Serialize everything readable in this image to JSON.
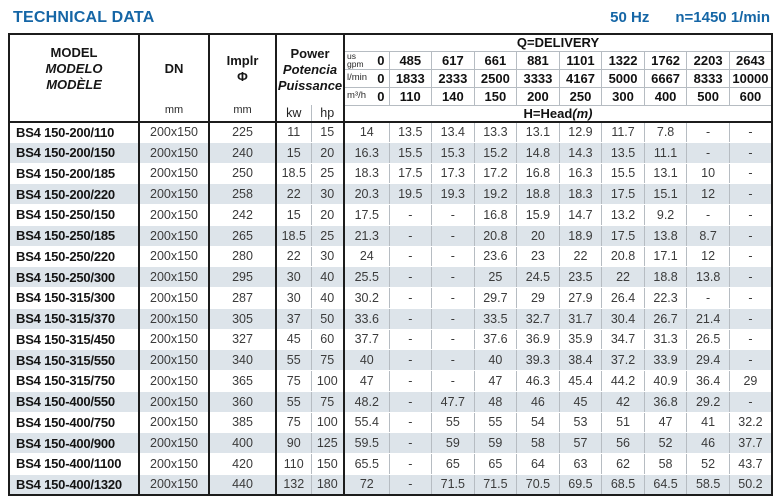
{
  "header": {
    "title": "TECHNICAL DATA",
    "frequency": "50 Hz",
    "speed": "n=1450 1/min"
  },
  "table": {
    "model_header": {
      "en": "MODEL",
      "es": "MODELO",
      "fr": "MODÈLE"
    },
    "dn_header": {
      "label": "DN",
      "unit": "mm"
    },
    "impeller_header": {
      "label": "Implr",
      "symbol": "Φ",
      "unit": "mm"
    },
    "power_header": {
      "en": "Power",
      "es": "Potencia",
      "fr": "Puissance",
      "unit_kw": "kw",
      "unit_hp": "hp"
    },
    "delivery": {
      "title": "Q=DELIVERY",
      "head_label": "H=Head",
      "head_unit": "(m)",
      "unit_rows": [
        {
          "unit_lines": [
            "us",
            "gpm"
          ],
          "zero": "0",
          "values": [
            "485",
            "617",
            "661",
            "881",
            "1101",
            "1322",
            "1762",
            "2203",
            "2643"
          ]
        },
        {
          "unit_lines": [
            "l/min"
          ],
          "zero": "0",
          "values": [
            "1833",
            "2333",
            "2500",
            "3333",
            "4167",
            "5000",
            "6667",
            "8333",
            "10000"
          ]
        },
        {
          "unit_lines": [
            "m³/h"
          ],
          "zero": "0",
          "values": [
            "110",
            "140",
            "150",
            "200",
            "250",
            "300",
            "400",
            "500",
            "600"
          ]
        }
      ]
    },
    "rows": [
      {
        "model": "BS4 150-200/110",
        "dn": "200x150",
        "impeller": "225",
        "kw": "11",
        "hp": "15",
        "heads": [
          "14",
          "13.5",
          "13.4",
          "13.3",
          "13.1",
          "12.9",
          "11.7",
          "7.8",
          "-",
          "-"
        ]
      },
      {
        "model": "BS4 150-200/150",
        "dn": "200x150",
        "impeller": "240",
        "kw": "15",
        "hp": "20",
        "heads": [
          "16.3",
          "15.5",
          "15.3",
          "15.2",
          "14.8",
          "14.3",
          "13.5",
          "11.1",
          "-",
          "-"
        ]
      },
      {
        "model": "BS4 150-200/185",
        "dn": "200x150",
        "impeller": "250",
        "kw": "18.5",
        "hp": "25",
        "heads": [
          "18.3",
          "17.5",
          "17.3",
          "17.2",
          "16.8",
          "16.3",
          "15.5",
          "13.1",
          "10",
          "-"
        ]
      },
      {
        "model": "BS4 150-200/220",
        "dn": "200x150",
        "impeller": "258",
        "kw": "22",
        "hp": "30",
        "heads": [
          "20.3",
          "19.5",
          "19.3",
          "19.2",
          "18.8",
          "18.3",
          "17.5",
          "15.1",
          "12",
          "-"
        ]
      },
      {
        "model": "BS4 150-250/150",
        "dn": "200x150",
        "impeller": "242",
        "kw": "15",
        "hp": "20",
        "heads": [
          "17.5",
          "-",
          "-",
          "16.8",
          "15.9",
          "14.7",
          "13.2",
          "9.2",
          "-",
          "-"
        ]
      },
      {
        "model": "BS4 150-250/185",
        "dn": "200x150",
        "impeller": "265",
        "kw": "18.5",
        "hp": "25",
        "heads": [
          "21.3",
          "-",
          "-",
          "20.8",
          "20",
          "18.9",
          "17.5",
          "13.8",
          "8.7",
          "-"
        ]
      },
      {
        "model": "BS4 150-250/220",
        "dn": "200x150",
        "impeller": "280",
        "kw": "22",
        "hp": "30",
        "heads": [
          "24",
          "-",
          "-",
          "23.6",
          "23",
          "22",
          "20.8",
          "17.1",
          "12",
          "-"
        ]
      },
      {
        "model": "BS4 150-250/300",
        "dn": "200x150",
        "impeller": "295",
        "kw": "30",
        "hp": "40",
        "heads": [
          "25.5",
          "-",
          "-",
          "25",
          "24.5",
          "23.5",
          "22",
          "18.8",
          "13.8",
          "-"
        ]
      },
      {
        "model": "BS4 150-315/300",
        "dn": "200x150",
        "impeller": "287",
        "kw": "30",
        "hp": "40",
        "heads": [
          "30.2",
          "-",
          "-",
          "29.7",
          "29",
          "27.9",
          "26.4",
          "22.3",
          "-",
          "-"
        ]
      },
      {
        "model": "BS4 150-315/370",
        "dn": "200x150",
        "impeller": "305",
        "kw": "37",
        "hp": "50",
        "heads": [
          "33.6",
          "-",
          "-",
          "33.5",
          "32.7",
          "31.7",
          "30.4",
          "26.7",
          "21.4",
          "-"
        ]
      },
      {
        "model": "BS4 150-315/450",
        "dn": "200x150",
        "impeller": "327",
        "kw": "45",
        "hp": "60",
        "heads": [
          "37.7",
          "-",
          "-",
          "37.6",
          "36.9",
          "35.9",
          "34.7",
          "31.3",
          "26.5",
          "-"
        ]
      },
      {
        "model": "BS4 150-315/550",
        "dn": "200x150",
        "impeller": "340",
        "kw": "55",
        "hp": "75",
        "heads": [
          "40",
          "-",
          "-",
          "40",
          "39.3",
          "38.4",
          "37.2",
          "33.9",
          "29.4",
          "-"
        ]
      },
      {
        "model": "BS4 150-315/750",
        "dn": "200x150",
        "impeller": "365",
        "kw": "75",
        "hp": "100",
        "heads": [
          "47",
          "-",
          "-",
          "47",
          "46.3",
          "45.4",
          "44.2",
          "40.9",
          "36.4",
          "29"
        ]
      },
      {
        "model": "BS4 150-400/550",
        "dn": "200x150",
        "impeller": "360",
        "kw": "55",
        "hp": "75",
        "heads": [
          "48.2",
          "-",
          "47.7",
          "48",
          "46",
          "45",
          "42",
          "36.8",
          "29.2",
          "-"
        ]
      },
      {
        "model": "BS4 150-400/750",
        "dn": "200x150",
        "impeller": "385",
        "kw": "75",
        "hp": "100",
        "heads": [
          "55.4",
          "-",
          "55",
          "55",
          "54",
          "53",
          "51",
          "47",
          "41",
          "32.2"
        ]
      },
      {
        "model": "BS4 150-400/900",
        "dn": "200x150",
        "impeller": "400",
        "kw": "90",
        "hp": "125",
        "heads": [
          "59.5",
          "-",
          "59",
          "59",
          "58",
          "57",
          "56",
          "52",
          "46",
          "37.7"
        ]
      },
      {
        "model": "BS4 150-400/1100",
        "dn": "200x150",
        "impeller": "420",
        "kw": "110",
        "hp": "150",
        "heads": [
          "65.5",
          "-",
          "65",
          "65",
          "64",
          "63",
          "62",
          "58",
          "52",
          "43.7"
        ]
      },
      {
        "model": "BS4 150-400/1320",
        "dn": "200x150",
        "impeller": "440",
        "kw": "132",
        "hp": "180",
        "heads": [
          "72",
          "-",
          "71.5",
          "71.5",
          "70.5",
          "69.5",
          "68.5",
          "64.5",
          "58.5",
          "50.2"
        ]
      }
    ]
  },
  "colors": {
    "accent_blue": "#1566a6",
    "row_shade": "#dde4ea",
    "border_dark": "#1c1c1c"
  }
}
